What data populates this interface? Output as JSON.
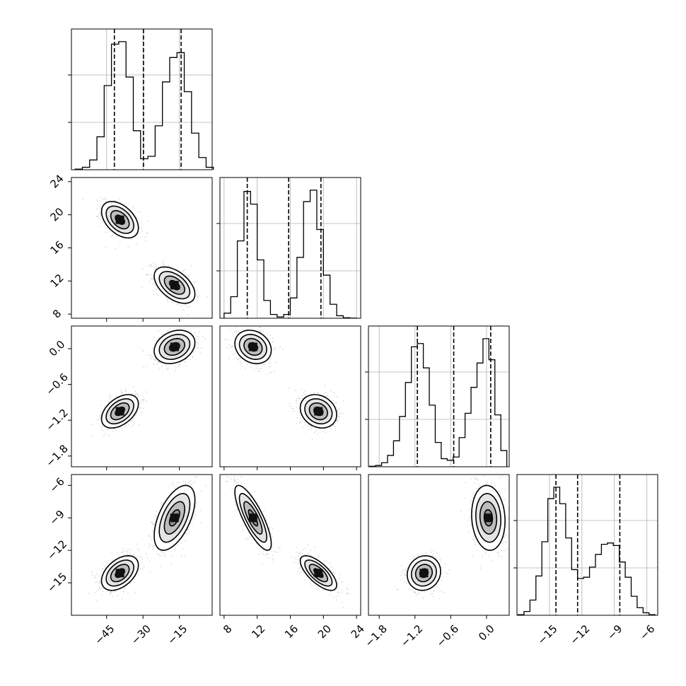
{
  "chart_data": {
    "type": "corner",
    "title": "",
    "parameters": [
      {
        "label": "",
        "range": [
          -59.5,
          -1.5
        ],
        "ticks": [
          -45,
          -30,
          -15
        ],
        "tick_labels": [
          "−45",
          "−30",
          "−15"
        ],
        "quantiles": [
          -41.8,
          -29.8,
          -14.3
        ],
        "modes": [
          {
            "center": -39.5,
            "sd": 3.8,
            "weight": 0.5
          },
          {
            "center": -17.0,
            "sd": 4.2,
            "weight": 0.5
          }
        ]
      },
      {
        "label": "",
        "range": [
          7.5,
          24.5
        ],
        "ticks": [
          8,
          12,
          16,
          20,
          24
        ],
        "tick_labels": [
          "8",
          "12",
          "16",
          "20",
          "24"
        ],
        "quantiles": [
          10.8,
          15.8,
          19.7
        ],
        "modes": [
          {
            "center": 11.5,
            "sd": 1.1,
            "weight": 0.5
          },
          {
            "center": 19.4,
            "sd": 1.1,
            "weight": 0.5
          }
        ]
      },
      {
        "label": "",
        "range": [
          -1.98,
          0.38
        ],
        "ticks": [
          -1.8,
          -1.2,
          -0.6,
          0.0
        ],
        "tick_labels": [
          "−1.8",
          "−1.2",
          "−0.6",
          "0.0"
        ],
        "quantiles": [
          -1.16,
          -0.55,
          0.07
        ],
        "modes": [
          {
            "center": -1.05,
            "sd": 0.14,
            "weight": 0.5
          },
          {
            "center": 0.03,
            "sd": 0.14,
            "weight": 0.5
          }
        ]
      },
      {
        "label": "",
        "range": [
          -18.0,
          -5.0
        ],
        "ticks": [
          -15,
          -12,
          -9,
          -6
        ],
        "tick_labels": [
          "−15",
          "−12",
          "−9",
          "−6"
        ],
        "quantiles": [
          -14.4,
          -12.4,
          -8.5
        ],
        "modes": [
          {
            "center": -14.1,
            "sd": 0.8,
            "weight": 0.5
          },
          {
            "center": -9.0,
            "sd": 1.5,
            "weight": 0.5
          }
        ]
      }
    ],
    "y_ticks_rows": [
      null,
      {
        "ticks": [
          8,
          12,
          16,
          20,
          24
        ],
        "tick_labels": [
          "8",
          "12",
          "16",
          "20",
          "24"
        ]
      },
      {
        "ticks": [
          -1.8,
          -1.2,
          -0.6,
          0.0
        ],
        "tick_labels": [
          "−1.8",
          "−1.2",
          "−0.6",
          "0.0"
        ]
      },
      {
        "ticks": [
          -15,
          -12,
          -9,
          -6
        ],
        "tick_labels": [
          "−15",
          "−12",
          "−9",
          "−6"
        ]
      }
    ],
    "histograms": [
      {
        "param": 0,
        "bin_edges": [
          -58,
          -55,
          -52,
          -49,
          -46,
          -43,
          -40,
          -37,
          -34,
          -31,
          -28,
          -25,
          -22,
          -19,
          -16,
          -13,
          -10,
          -7,
          -4,
          -1
        ],
        "counts": [
          5,
          20,
          80,
          270,
          690,
          1030,
          1050,
          760,
          320,
          90,
          110,
          360,
          720,
          920,
          960,
          640,
          300,
          100,
          20
        ]
      },
      {
        "param": 1,
        "bin_edges": [
          8,
          8.8,
          9.6,
          10.4,
          11.2,
          12,
          12.8,
          13.6,
          14.4,
          15.2,
          16,
          16.8,
          17.6,
          18.4,
          19.2,
          20,
          20.8,
          21.6,
          22.4,
          23.2,
          24
        ],
        "counts": [
          40,
          170,
          610,
          1000,
          900,
          460,
          140,
          30,
          10,
          30,
          160,
          480,
          920,
          1010,
          700,
          340,
          110,
          20,
          4,
          1
        ]
      },
      {
        "param": 2,
        "bin_edges": [
          -1.96,
          -1.86,
          -1.76,
          -1.66,
          -1.56,
          -1.46,
          -1.36,
          -1.26,
          -1.16,
          -1.06,
          -0.96,
          -0.86,
          -0.76,
          -0.66,
          -0.56,
          -0.46,
          -0.36,
          -0.26,
          -0.16,
          -0.06,
          0.04,
          0.14,
          0.24,
          0.34
        ],
        "counts": [
          3,
          8,
          25,
          70,
          160,
          310,
          520,
          740,
          760,
          610,
          380,
          150,
          50,
          40,
          60,
          180,
          330,
          490,
          640,
          790,
          660,
          320,
          100
        ]
      },
      {
        "param": 3,
        "bin_edges": [
          -17.9,
          -17.35,
          -16.8,
          -16.25,
          -15.7,
          -15.15,
          -14.6,
          -14.05,
          -13.5,
          -12.95,
          -12.4,
          -11.85,
          -11.3,
          -10.75,
          -10.2,
          -9.65,
          -9.1,
          -8.55,
          -8.0,
          -7.45,
          -6.9,
          -6.35,
          -5.8,
          -5.25
        ],
        "counts": [
          5,
          30,
          120,
          310,
          580,
          920,
          1010,
          880,
          610,
          360,
          290,
          300,
          380,
          480,
          560,
          570,
          550,
          420,
          300,
          150,
          60,
          20,
          5
        ]
      }
    ],
    "pairs": [
      {
        "x": 0,
        "y": 1,
        "modes": [
          {
            "cx": -39.5,
            "cy": 19.4,
            "sx": 3.8,
            "sy": 1.1,
            "rho": -0.45
          },
          {
            "cx": -17.0,
            "cy": 11.5,
            "sx": 4.2,
            "sy": 1.1,
            "rho": -0.5
          }
        ]
      },
      {
        "x": 0,
        "y": 2,
        "modes": [
          {
            "cx": -39.5,
            "cy": -1.05,
            "sx": 3.8,
            "sy": 0.14,
            "rho": 0.45
          },
          {
            "cx": -17.0,
            "cy": 0.03,
            "sx": 4.2,
            "sy": 0.14,
            "rho": 0.25
          }
        ]
      },
      {
        "x": 0,
        "y": 3,
        "modes": [
          {
            "cx": -39.5,
            "cy": -14.1,
            "sx": 3.8,
            "sy": 0.8,
            "rho": 0.45
          },
          {
            "cx": -17.0,
            "cy": -9.0,
            "sx": 4.2,
            "sy": 1.5,
            "rho": 0.55
          }
        ]
      },
      {
        "x": 1,
        "y": 2,
        "modes": [
          {
            "cx": 11.5,
            "cy": 0.03,
            "sx": 1.1,
            "sy": 0.14,
            "rho": -0.2
          },
          {
            "cx": 19.4,
            "cy": -1.05,
            "sx": 1.1,
            "sy": 0.14,
            "rho": -0.2
          }
        ]
      },
      {
        "x": 1,
        "y": 3,
        "modes": [
          {
            "cx": 11.5,
            "cy": -9.0,
            "sx": 1.1,
            "sy": 1.5,
            "rho": -0.8
          },
          {
            "cx": 19.4,
            "cy": -14.1,
            "sx": 1.1,
            "sy": 0.8,
            "rho": -0.7
          }
        ]
      },
      {
        "x": 2,
        "y": 3,
        "modes": [
          {
            "cx": 0.03,
            "cy": -9.0,
            "sx": 0.14,
            "sy": 1.5,
            "rho": -0.1
          },
          {
            "cx": -1.05,
            "cy": -14.1,
            "sx": 0.14,
            "sy": 0.8,
            "rho": 0.1
          }
        ]
      }
    ],
    "contour_levels_sigma": [
      0.5,
      1.0,
      1.5,
      2.0
    ],
    "quantiles_shown": [
      0.16,
      0.5,
      0.84
    ],
    "grid": true,
    "colors": {
      "lines": "#000000",
      "scatter": "#9a9a9a",
      "grid": "#b0b0b0",
      "fill": "#555555",
      "background": "#ffffff"
    }
  }
}
